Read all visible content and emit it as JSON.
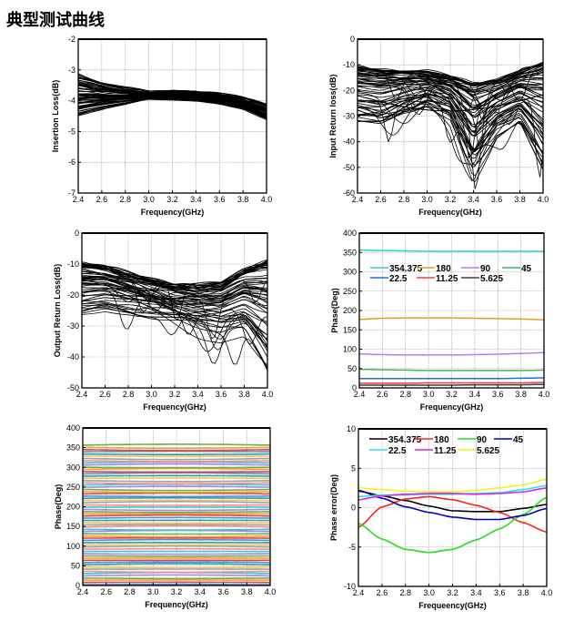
{
  "page": {
    "title": "典型测试曲线"
  },
  "chart_data": [
    {
      "id": "insertion-loss",
      "type": "line",
      "title": "",
      "xlabel": "Frequency(GHz)",
      "ylabel": "Insertion Loss(dB)",
      "xlim": [
        2.4,
        4.0
      ],
      "ylim": [
        -7,
        -2
      ],
      "xticks": [
        "2.4",
        "2.6",
        "2.8",
        "3.0",
        "3.2",
        "3.4",
        "3.6",
        "3.8",
        "4.0"
      ],
      "yticks": [
        "-2",
        "-3",
        "-4",
        "-5",
        "-6",
        "-7"
      ],
      "grid": true,
      "color": "#000000",
      "description": "64 overlapping traces",
      "x": [
        2.4,
        2.6,
        2.8,
        3.0,
        3.2,
        3.4,
        3.6,
        3.8,
        4.0
      ],
      "envelope_upper": [
        -3.1,
        -3.35,
        -3.55,
        -3.7,
        -3.65,
        -3.65,
        -3.72,
        -3.85,
        -4.05
      ],
      "envelope_lower": [
        -4.5,
        -4.35,
        -4.2,
        -4.0,
        -4.05,
        -4.15,
        -4.3,
        -4.5,
        -5.0
      ],
      "trace_count": 64
    },
    {
      "id": "input-return-loss",
      "type": "line",
      "title": "",
      "xlabel": "Frequency(GHz)",
      "ylabel": "Input Return loss(dB)",
      "xlim": [
        2.4,
        4.0
      ],
      "ylim": [
        -60,
        0
      ],
      "xticks": [
        "2.4",
        "2.6",
        "2.8",
        "3.0",
        "3.2",
        "3.4",
        "3.6",
        "3.8",
        "4.0"
      ],
      "yticks": [
        "0",
        "-10",
        "-20",
        "-30",
        "-40",
        "-50",
        "-60"
      ],
      "grid": true,
      "color": "#000000",
      "trace_count": 64,
      "x": [
        2.4,
        2.6,
        2.8,
        3.0,
        3.2,
        3.4,
        3.6,
        3.8,
        4.0
      ],
      "envelope_upper": [
        -11,
        -12,
        -12.5,
        -13,
        -14.5,
        -17,
        -16,
        -12.5,
        -9
      ],
      "envelope_lower": [
        -34,
        -35,
        -30,
        -27,
        -33,
        -58,
        -40,
        -34,
        -53
      ],
      "notches": [
        {
          "x": 2.67,
          "y": -40
        },
        {
          "x": 3.37,
          "y": -47
        },
        {
          "x": 3.42,
          "y": -59
        },
        {
          "x": 3.46,
          "y": -43
        },
        {
          "x": 3.97,
          "y": -54
        }
      ]
    },
    {
      "id": "output-return-loss",
      "type": "line",
      "title": "",
      "xlabel": "Frequency(GHz)",
      "ylabel": "Output Return Loss(dB)",
      "xlim": [
        2.4,
        4.0
      ],
      "ylim": [
        -50,
        0
      ],
      "xticks": [
        "2.4",
        "2.6",
        "2.8",
        "3.0",
        "3.2",
        "3.4",
        "3.6",
        "3.8",
        "4.0"
      ],
      "yticks": [
        "0",
        "-10",
        "-20",
        "-30",
        "-40",
        "-50"
      ],
      "grid": true,
      "color": "#000000",
      "trace_count": 64,
      "x": [
        2.4,
        2.6,
        2.8,
        3.0,
        3.2,
        3.4,
        3.6,
        3.8,
        4.0
      ],
      "envelope_upper": [
        -10,
        -11,
        -13,
        -15,
        -17,
        -17,
        -16,
        -12,
        -9
      ],
      "envelope_lower": [
        -29,
        -27,
        -28,
        -30,
        -32,
        -35,
        -37,
        -36,
        -50
      ]
    },
    {
      "id": "phase-states",
      "type": "line",
      "title": "",
      "xlabel": "Frequency(GHz)",
      "ylabel": "Phase(Deg)",
      "xlim": [
        2.4,
        4.0
      ],
      "ylim": [
        0,
        400
      ],
      "xticks": [
        "2.4",
        "2.6",
        "2.8",
        "3.0",
        "3.2",
        "3.4",
        "3.6",
        "3.8",
        "4.0"
      ],
      "yticks": [
        "400",
        "350",
        "300",
        "250",
        "200",
        "150",
        "100",
        "50",
        "0"
      ],
      "grid": true,
      "legend": "top",
      "x": [
        2.4,
        2.6,
        2.8,
        3.0,
        3.2,
        3.4,
        3.6,
        3.8,
        4.0
      ],
      "series": [
        {
          "name": "354.375",
          "color": "#22d0d8",
          "values": [
            356,
            355,
            354,
            353,
            353,
            353,
            353,
            353,
            353
          ]
        },
        {
          "name": "180",
          "color": "#e0a020",
          "values": [
            177,
            180,
            181,
            181,
            181,
            180,
            179,
            178,
            176
          ]
        },
        {
          "name": "90",
          "color": "#b67de8",
          "values": [
            88,
            86,
            85,
            85,
            85,
            86,
            87,
            89,
            91
          ]
        },
        {
          "name": "45",
          "color": "#3cb85a",
          "values": [
            48,
            47,
            46,
            45,
            45,
            45,
            45,
            45,
            46
          ]
        },
        {
          "name": "22.5",
          "color": "#2070e0",
          "values": [
            24,
            24,
            24,
            24,
            24,
            24,
            24,
            25,
            26
          ]
        },
        {
          "name": "11.25",
          "color": "#e84040",
          "values": [
            12,
            12,
            12,
            13,
            13,
            13,
            13,
            13,
            14
          ]
        },
        {
          "name": "5.625",
          "color": "#404040",
          "values": [
            7,
            7,
            7,
            7,
            7,
            8,
            8,
            8,
            9
          ]
        }
      ]
    },
    {
      "id": "phase-all-states",
      "type": "line",
      "title": "",
      "xlabel": "Frequency(GHz)",
      "ylabel": "Phase(Deg)",
      "xlim": [
        2.4,
        4.0
      ],
      "ylim": [
        0,
        400
      ],
      "xticks": [
        "2.4",
        "2.6",
        "2.8",
        "3.0",
        "3.2",
        "3.4",
        "3.6",
        "3.8",
        "4.0"
      ],
      "yticks": [
        "400",
        "350",
        "300",
        "250",
        "200",
        "150",
        "100",
        "50",
        "0"
      ],
      "grid": true,
      "description": "64 phase states, 5.625 deg steps from 0 to 354.375",
      "trace_count": 64,
      "step_deg": 5.625,
      "palette": [
        "#4a90e2",
        "#e84040",
        "#f0a030",
        "#6ab04c",
        "#b67de8",
        "#22d0d8",
        "#ff8a8a",
        "#a0a0a0",
        "#f5c060",
        "#2aa198"
      ]
    },
    {
      "id": "phase-error",
      "type": "line",
      "title": "",
      "xlabel": "Frequeency(GHz)",
      "ylabel": "Phase error(Deg)",
      "xlim": [
        2.4,
        4.0
      ],
      "ylim": [
        -10,
        10
      ],
      "xticks": [
        "2.4",
        "2.6",
        "2.8",
        "3.0",
        "3.2",
        "3.4",
        "3.6",
        "3.8",
        "4.0"
      ],
      "yticks": [
        "10",
        "5",
        "0",
        "-5",
        "-10"
      ],
      "grid": true,
      "legend": "top",
      "x": [
        2.4,
        2.6,
        2.8,
        3.0,
        3.2,
        3.4,
        3.6,
        3.8,
        4.0
      ],
      "series": [
        {
          "name": "354.375",
          "color": "#000000",
          "values": [
            2.1,
            1.5,
            0.9,
            0.2,
            -0.4,
            -0.5,
            -0.5,
            -0.1,
            0.4
          ]
        },
        {
          "name": "180",
          "color": "#ff2020",
          "values": [
            -2.5,
            0.1,
            1.1,
            1.4,
            1.0,
            0.3,
            -0.6,
            -1.9,
            -3.1
          ]
        },
        {
          "name": "90",
          "color": "#20e020",
          "values": [
            -2.0,
            -4.0,
            -5.3,
            -5.7,
            -5.3,
            -4.1,
            -2.7,
            -0.9,
            1.3
          ]
        },
        {
          "name": "45",
          "color": "#0000c0",
          "values": [
            2.2,
            1.2,
            0.1,
            -0.6,
            -1.2,
            -1.5,
            -1.5,
            -1.0,
            -0.1
          ]
        },
        {
          "name": "22.5",
          "color": "#20e8f0",
          "values": [
            1.4,
            1.6,
            1.6,
            1.7,
            1.7,
            1.8,
            1.9,
            2.3,
            2.8
          ]
        },
        {
          "name": "11.25",
          "color": "#e020e0",
          "values": [
            1.0,
            1.5,
            1.7,
            1.8,
            1.8,
            1.7,
            1.8,
            2.0,
            2.5
          ]
        },
        {
          "name": "5.625",
          "color": "#f8f020",
          "values": [
            2.5,
            2.3,
            2.1,
            2.0,
            2.0,
            2.2,
            2.5,
            2.9,
            3.6
          ]
        }
      ]
    }
  ]
}
